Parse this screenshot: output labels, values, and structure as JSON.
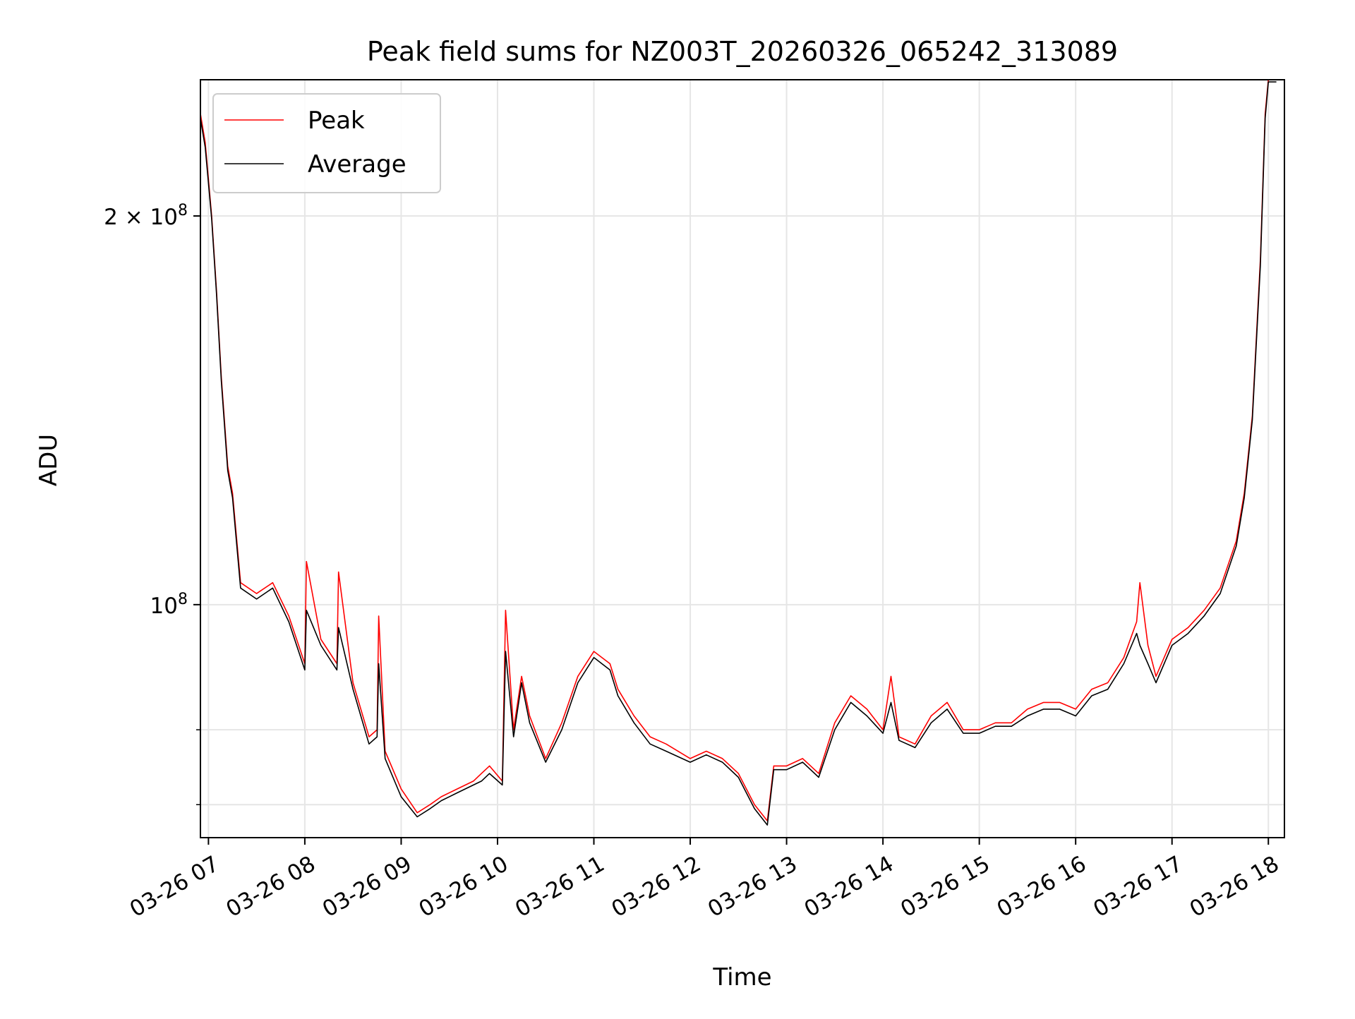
{
  "chart_data": {
    "type": "line",
    "title": "Peak field sums for NZ003T_20260326_065242_313089",
    "xlabel": "Time",
    "ylabel": "ADU",
    "y_scale": "log",
    "ylim": [
      66000000,
      255000000
    ],
    "xlim": [
      "2026-03-26 06:55",
      "2026-03-26 18:10"
    ],
    "grid": true,
    "legend_position": "upper left",
    "x_ticks": [
      {
        "value": "2026-03-26 07:00",
        "label": "03-26 07"
      },
      {
        "value": "2026-03-26 08:00",
        "label": "03-26 08"
      },
      {
        "value": "2026-03-26 09:00",
        "label": "03-26 09"
      },
      {
        "value": "2026-03-26 10:00",
        "label": "03-26 10"
      },
      {
        "value": "2026-03-26 11:00",
        "label": "03-26 11"
      },
      {
        "value": "2026-03-26 12:00",
        "label": "03-26 12"
      },
      {
        "value": "2026-03-26 13:00",
        "label": "03-26 13"
      },
      {
        "value": "2026-03-26 14:00",
        "label": "03-26 14"
      },
      {
        "value": "2026-03-26 15:00",
        "label": "03-26 15"
      },
      {
        "value": "2026-03-26 16:00",
        "label": "03-26 16"
      },
      {
        "value": "2026-03-26 17:00",
        "label": "03-26 17"
      },
      {
        "value": "2026-03-26 18:00",
        "label": "03-26 18"
      }
    ],
    "y_major_ticks": [
      {
        "value": 100000000,
        "label_base": "10",
        "label_exp": "8",
        "label_prefix": ""
      },
      {
        "value": 200000000,
        "label_base": "10",
        "label_exp": "8",
        "label_prefix": "2 × "
      }
    ],
    "y_minor_ticks": [
      70000000,
      80000000
    ],
    "series": [
      {
        "name": "Peak",
        "color": "#ff0000",
        "x": [
          "2026-03-26 06:55",
          "2026-03-26 06:58",
          "2026-03-26 07:02",
          "2026-03-26 07:05",
          "2026-03-26 07:08",
          "2026-03-26 07:12",
          "2026-03-26 07:15",
          "2026-03-26 07:20",
          "2026-03-26 07:30",
          "2026-03-26 07:40",
          "2026-03-26 07:50",
          "2026-03-26 08:00",
          "2026-03-26 08:01",
          "2026-03-26 08:10",
          "2026-03-26 08:20",
          "2026-03-26 08:21",
          "2026-03-26 08:30",
          "2026-03-26 08:40",
          "2026-03-26 08:45",
          "2026-03-26 08:46",
          "2026-03-26 08:50",
          "2026-03-26 09:00",
          "2026-03-26 09:10",
          "2026-03-26 09:18",
          "2026-03-26 09:25",
          "2026-03-26 09:35",
          "2026-03-26 09:45",
          "2026-03-26 09:50",
          "2026-03-26 09:55",
          "2026-03-26 10:03",
          "2026-03-26 10:05",
          "2026-03-26 10:10",
          "2026-03-26 10:15",
          "2026-03-26 10:20",
          "2026-03-26 10:30",
          "2026-03-26 10:40",
          "2026-03-26 10:50",
          "2026-03-26 11:00",
          "2026-03-26 11:10",
          "2026-03-26 11:15",
          "2026-03-26 11:25",
          "2026-03-26 11:35",
          "2026-03-26 11:45",
          "2026-03-26 12:00",
          "2026-03-26 12:10",
          "2026-03-26 12:20",
          "2026-03-26 12:30",
          "2026-03-26 12:40",
          "2026-03-26 12:48",
          "2026-03-26 12:52",
          "2026-03-26 13:00",
          "2026-03-26 13:10",
          "2026-03-26 13:20",
          "2026-03-26 13:30",
          "2026-03-26 13:40",
          "2026-03-26 13:50",
          "2026-03-26 14:00",
          "2026-03-26 14:05",
          "2026-03-26 14:10",
          "2026-03-26 14:20",
          "2026-03-26 14:30",
          "2026-03-26 14:40",
          "2026-03-26 14:50",
          "2026-03-26 15:00",
          "2026-03-26 15:10",
          "2026-03-26 15:20",
          "2026-03-26 15:30",
          "2026-03-26 15:40",
          "2026-03-26 15:50",
          "2026-03-26 16:00",
          "2026-03-26 16:10",
          "2026-03-26 16:20",
          "2026-03-26 16:30",
          "2026-03-26 16:38",
          "2026-03-26 16:40",
          "2026-03-26 16:45",
          "2026-03-26 16:50",
          "2026-03-26 17:00",
          "2026-03-26 17:10",
          "2026-03-26 17:20",
          "2026-03-26 17:30",
          "2026-03-26 17:40",
          "2026-03-26 17:45",
          "2026-03-26 17:50",
          "2026-03-26 17:55",
          "2026-03-26 17:58",
          "2026-03-26 18:00",
          "2026-03-26 18:05"
        ],
        "y": [
          240000000,
          228000000,
          200000000,
          175000000,
          150000000,
          128000000,
          122000000,
          104000000,
          102000000,
          104000000,
          98000000,
          90000000,
          108000000,
          94000000,
          90000000,
          106000000,
          87000000,
          79000000,
          80000000,
          98000000,
          77000000,
          72000000,
          69000000,
          70000000,
          71000000,
          72000000,
          73000000,
          74000000,
          75000000,
          73000000,
          99000000,
          80000000,
          88000000,
          82000000,
          76000000,
          81000000,
          88000000,
          92000000,
          90000000,
          86000000,
          82000000,
          79000000,
          78000000,
          76000000,
          77000000,
          76000000,
          74000000,
          70000000,
          68000000,
          75000000,
          75000000,
          76000000,
          74000000,
          81000000,
          85000000,
          83000000,
          80000000,
          88000000,
          79000000,
          78000000,
          82000000,
          84000000,
          80000000,
          80000000,
          81000000,
          81000000,
          83000000,
          84000000,
          84000000,
          83000000,
          86000000,
          87000000,
          91000000,
          97000000,
          104000000,
          93000000,
          88000000,
          94000000,
          96000000,
          99000000,
          103000000,
          112000000,
          122000000,
          140000000,
          185000000,
          240000000,
          255000000,
          255000000
        ]
      },
      {
        "name": "Average",
        "color": "#000000",
        "x": [
          "2026-03-26 06:55",
          "2026-03-26 06:58",
          "2026-03-26 07:02",
          "2026-03-26 07:05",
          "2026-03-26 07:08",
          "2026-03-26 07:12",
          "2026-03-26 07:15",
          "2026-03-26 07:20",
          "2026-03-26 07:30",
          "2026-03-26 07:40",
          "2026-03-26 07:50",
          "2026-03-26 08:00",
          "2026-03-26 08:01",
          "2026-03-26 08:10",
          "2026-03-26 08:20",
          "2026-03-26 08:21",
          "2026-03-26 08:30",
          "2026-03-26 08:40",
          "2026-03-26 08:45",
          "2026-03-26 08:46",
          "2026-03-26 08:50",
          "2026-03-26 09:00",
          "2026-03-26 09:10",
          "2026-03-26 09:18",
          "2026-03-26 09:25",
          "2026-03-26 09:35",
          "2026-03-26 09:45",
          "2026-03-26 09:50",
          "2026-03-26 09:55",
          "2026-03-26 10:03",
          "2026-03-26 10:05",
          "2026-03-26 10:10",
          "2026-03-26 10:15",
          "2026-03-26 10:20",
          "2026-03-26 10:30",
          "2026-03-26 10:40",
          "2026-03-26 10:50",
          "2026-03-26 11:00",
          "2026-03-26 11:10",
          "2026-03-26 11:15",
          "2026-03-26 11:25",
          "2026-03-26 11:35",
          "2026-03-26 11:45",
          "2026-03-26 12:00",
          "2026-03-26 12:10",
          "2026-03-26 12:20",
          "2026-03-26 12:30",
          "2026-03-26 12:40",
          "2026-03-26 12:48",
          "2026-03-26 12:52",
          "2026-03-26 13:00",
          "2026-03-26 13:10",
          "2026-03-26 13:20",
          "2026-03-26 13:30",
          "2026-03-26 13:40",
          "2026-03-26 13:50",
          "2026-03-26 14:00",
          "2026-03-26 14:05",
          "2026-03-26 14:10",
          "2026-03-26 14:20",
          "2026-03-26 14:30",
          "2026-03-26 14:40",
          "2026-03-26 14:50",
          "2026-03-26 15:00",
          "2026-03-26 15:10",
          "2026-03-26 15:20",
          "2026-03-26 15:30",
          "2026-03-26 15:40",
          "2026-03-26 15:50",
          "2026-03-26 16:00",
          "2026-03-26 16:10",
          "2026-03-26 16:20",
          "2026-03-26 16:30",
          "2026-03-26 16:38",
          "2026-03-26 16:40",
          "2026-03-26 16:45",
          "2026-03-26 16:50",
          "2026-03-26 17:00",
          "2026-03-26 17:10",
          "2026-03-26 17:20",
          "2026-03-26 17:30",
          "2026-03-26 17:40",
          "2026-03-26 17:45",
          "2026-03-26 17:50",
          "2026-03-26 17:55",
          "2026-03-26 17:58",
          "2026-03-26 18:00",
          "2026-03-26 18:05"
        ],
        "y": [
          238000000,
          226000000,
          199000000,
          174000000,
          149000000,
          127000000,
          121000000,
          103000000,
          101000000,
          103000000,
          97000000,
          89000000,
          99000000,
          93000000,
          89000000,
          96000000,
          86000000,
          78000000,
          79000000,
          90000000,
          76000000,
          71000000,
          68500000,
          69500000,
          70500000,
          71500000,
          72500000,
          73000000,
          74000000,
          72500000,
          92000000,
          79000000,
          87000000,
          81000000,
          75500000,
          80000000,
          87000000,
          91000000,
          89000000,
          85000000,
          81000000,
          78000000,
          77000000,
          75500000,
          76500000,
          75500000,
          73500000,
          69500000,
          67500000,
          74500000,
          74500000,
          75500000,
          73500000,
          80000000,
          84000000,
          82000000,
          79500000,
          84000000,
          78500000,
          77500000,
          81000000,
          83000000,
          79500000,
          79500000,
          80500000,
          80500000,
          82000000,
          83000000,
          83000000,
          82000000,
          85000000,
          86000000,
          90000000,
          95000000,
          93000000,
          90000000,
          87000000,
          93000000,
          95000000,
          98000000,
          102000000,
          111000000,
          121000000,
          139000000,
          183000000,
          238000000,
          254000000,
          254000000
        ]
      }
    ]
  }
}
